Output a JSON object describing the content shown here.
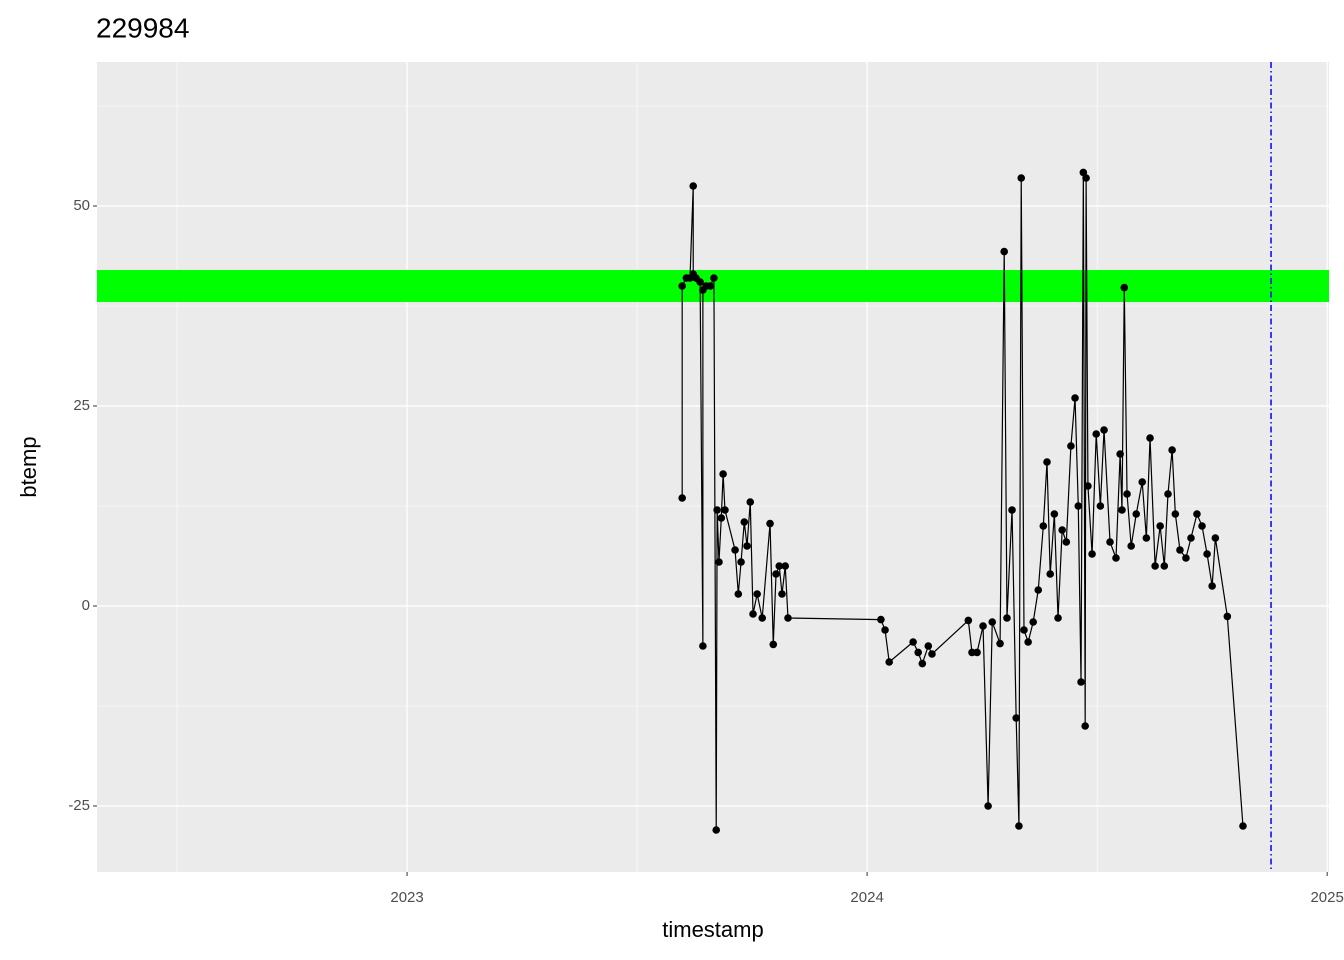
{
  "chart_data": {
    "type": "line",
    "title": "229984",
    "x_label": "timestamp",
    "y_label": "btemp",
    "xlim": [
      2022.326,
      2025.004
    ],
    "xticks": [
      2023,
      2024,
      2025
    ],
    "ylim": [
      -33.25,
      68
    ],
    "yticks": [
      -25,
      0,
      25,
      50
    ],
    "grid": true,
    "band": {
      "ymin": 38,
      "ymax": 42,
      "color": "#00ff00"
    },
    "vline": {
      "x": 2024.878,
      "color": "#0000ff"
    },
    "series": [
      {
        "color": "#000000",
        "x": [
          2023.598,
          2023.598,
          2023.607,
          2023.615,
          2023.622,
          2023.622,
          2023.628,
          2023.637,
          2023.643,
          2023.643,
          2023.65,
          2023.659,
          2023.667,
          2023.672,
          2023.674,
          2023.678,
          2023.683,
          2023.687,
          2023.691,
          2023.713,
          2023.72,
          2023.726,
          2023.733,
          2023.739,
          2023.746,
          2023.752,
          2023.761,
          2023.772,
          2023.789,
          2023.796,
          2023.802,
          2023.809,
          2023.815,
          2023.822,
          2023.828,
          2024.03,
          2024.039,
          2024.048,
          2024.1,
          2024.111,
          2024.12,
          2024.133,
          2024.141,
          2024.22,
          2024.228,
          2024.239,
          2024.252,
          2024.263,
          2024.272,
          2024.289,
          2024.298,
          2024.304,
          2024.315,
          2024.324,
          2024.33,
          2024.335,
          2024.341,
          2024.35,
          2024.361,
          2024.372,
          2024.383,
          2024.391,
          2024.398,
          2024.407,
          2024.415,
          2024.424,
          2024.433,
          2024.443,
          2024.452,
          2024.459,
          2024.465,
          2024.47,
          2024.474,
          2024.476,
          2024.48,
          2024.489,
          2024.498,
          2024.507,
          2024.515,
          2024.528,
          2024.541,
          2024.55,
          2024.554,
          2024.559,
          2024.565,
          2024.574,
          2024.585,
          2024.598,
          2024.607,
          2024.615,
          2024.626,
          2024.637,
          2024.646,
          2024.654,
          2024.663,
          2024.67,
          2024.68,
          2024.693,
          2024.704,
          2024.717,
          2024.728,
          2024.739,
          2024.75,
          2024.757,
          2024.783,
          2024.817
        ],
        "values": [
          13.5,
          40,
          41,
          41,
          52.5,
          41.5,
          41,
          40.5,
          -5,
          39.5,
          40,
          40,
          41,
          -28,
          12,
          5.5,
          11,
          16.5,
          12,
          7,
          1.5,
          5.5,
          10.5,
          7.5,
          13,
          -1,
          1.5,
          -1.5,
          10.3,
          -4.8,
          4,
          5,
          1.5,
          5,
          -1.5,
          -1.7,
          -3,
          -7,
          -4.5,
          -5.8,
          -7.2,
          -5,
          -6,
          -1.8,
          -5.8,
          -5.8,
          -2.5,
          -25,
          -2,
          -4.7,
          44.3,
          -1.5,
          12,
          -14,
          -27.5,
          53.5,
          -3,
          -4.5,
          -2,
          2,
          10,
          18,
          4,
          11.5,
          -1.5,
          9.5,
          8,
          20,
          26,
          12.5,
          -9.5,
          54.2,
          -15,
          53.5,
          15,
          6.5,
          21.5,
          12.5,
          22,
          8,
          6,
          19,
          12,
          39.8,
          14,
          7.5,
          11.5,
          15.5,
          8.5,
          21,
          5,
          10,
          5,
          14,
          19.5,
          11.5,
          7,
          6,
          8.5,
          11.5,
          10,
          6.5,
          2.5,
          8.5,
          -1.3,
          -27.5
        ]
      }
    ]
  }
}
